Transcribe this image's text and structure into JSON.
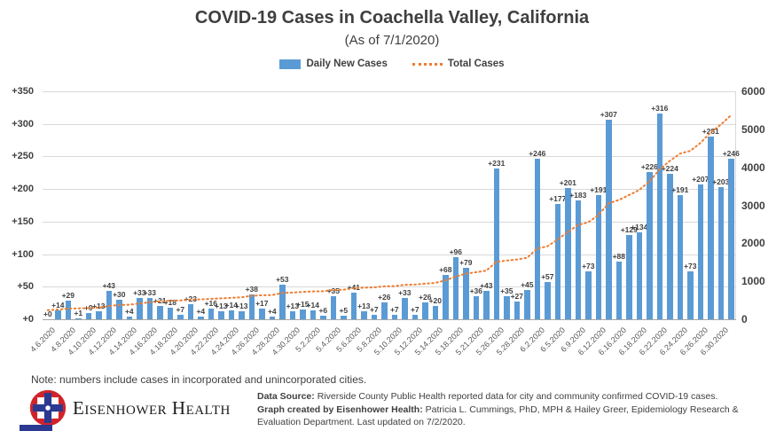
{
  "chart_data": {
    "type": "bar",
    "title": "COVID-19 Cases in Coachella Valley, California",
    "subtitle": "(As of 7/1/2020)",
    "legend_position": "top",
    "grid": "horizontal",
    "x_tick_labels": [
      "4.6.2020",
      "4.8.2020",
      "4.10.2020",
      "4.12.2020",
      "4.14.2020",
      "4.16.2020",
      "4.18.2020",
      "4.20.2020",
      "4.22.2020",
      "4.24.2020",
      "4.26.2020",
      "4.28.2020",
      "4.30.2020",
      "5.2.2020",
      "5.4.2020",
      "5.6.2020",
      "5.8.2020",
      "5.10.2020",
      "5.12.2020",
      "5.14.2020",
      "5.18.2020",
      "5.21.2020",
      "5.26.2020",
      "5.28.2020",
      "6.2.2020",
      "6.5.2020",
      "6.9.2020",
      "6.12.2020",
      "6.16.2020",
      "6.18.2020",
      "6.22.2020",
      "6.24.2020",
      "6.26.2020",
      "6.30.2020"
    ],
    "x_tick_every_n_bars": 2,
    "left_axis": {
      "ticks": [
        "+350",
        "+300",
        "+250",
        "+200",
        "+150",
        "+100",
        "+50",
        "+0"
      ],
      "range": [
        0,
        350
      ]
    },
    "right_axis": {
      "ticks": [
        "6000",
        "5000",
        "4000",
        "3000",
        "2000",
        "1000",
        "0"
      ],
      "range": [
        0,
        6000
      ]
    },
    "series": [
      {
        "name": "Daily New Cases",
        "type": "bar",
        "axis": "left",
        "data_label_prefix": "+",
        "values": [
          0,
          14,
          29,
          1,
          9,
          13,
          43,
          30,
          4,
          33,
          33,
          21,
          18,
          7,
          23,
          4,
          16,
          13,
          14,
          13,
          38,
          17,
          4,
          53,
          13,
          15,
          14,
          6,
          35,
          5,
          41,
          13,
          7,
          26,
          7,
          33,
          7,
          26,
          20,
          68,
          96,
          79,
          36,
          43,
          231,
          35,
          27,
          45,
          246,
          57,
          177,
          201,
          183,
          73,
          191,
          307,
          88,
          129,
          134,
          226,
          316,
          224,
          191,
          73,
          207,
          281,
          203,
          246
        ]
      },
      {
        "name": "Total Cases",
        "type": "dotted_line",
        "axis": "right",
        "values_estimated_from_line": [
          240,
          254,
          283,
          284,
          293,
          306,
          349,
          379,
          383,
          416,
          449,
          470,
          488,
          495,
          518,
          522,
          538,
          551,
          565,
          578,
          616,
          633,
          637,
          690,
          703,
          718,
          732,
          738,
          773,
          778,
          819,
          832,
          839,
          865,
          872,
          905,
          912,
          938,
          958,
          1026,
          1122,
          1201,
          1237,
          1280,
          1511,
          1546,
          1573,
          1618,
          1864,
          1921,
          2098,
          2299,
          2482,
          2555,
          2746,
          3053,
          3141,
          3270,
          3404,
          3630,
          3946,
          4170,
          4361,
          4434,
          4641,
          4922,
          5125,
          5371
        ]
      }
    ]
  },
  "colors": {
    "bar_blue": "#5B9BD5",
    "line_orange": "#ED7D31",
    "grid": "#D9D9D9",
    "baseline": "#A6A6A6",
    "logo_red": "#D2232A",
    "logo_blue": "#2B3990"
  },
  "note": "Note: numbers include cases in incorporated and unincorporated cities.",
  "footer": {
    "brand": "Eisenhower Health",
    "source_label": "Data Source:",
    "source_text": "Riverside County Public Health reported data for city and community confirmed COVID-19 cases.",
    "credit_label": "Graph created by Eisenhower Health:",
    "credit_text": "Patricia L. Cummings, PhD, MPH & Hailey Greer, Epidemiology Research & Evaluation Department. Last updated on 7/2/2020."
  }
}
